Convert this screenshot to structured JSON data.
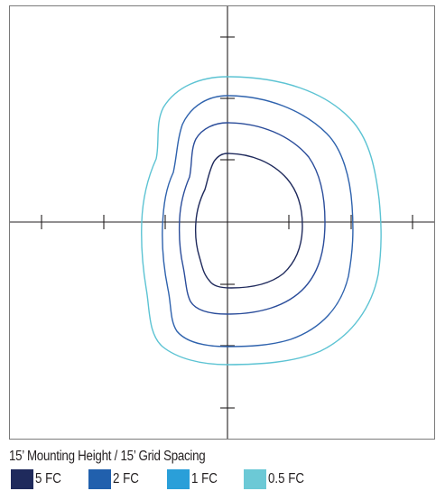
{
  "title": "15’ Mounting Height / 15’ Grid Spacing",
  "legend": [
    {
      "label": "5 FC",
      "color": "#1f2a5c"
    },
    {
      "label": "2 FC",
      "color": "#2160ad"
    },
    {
      "label": "1 FC",
      "color": "#2a9fd9"
    },
    {
      "label": "0.5 FC",
      "color": "#6cc9d6"
    }
  ],
  "colors": {
    "frame": "#7a7a7a",
    "axes": "#231f20",
    "contour_5fc": "#1f2a5c",
    "contour_2fc": "#2a4c9a",
    "contour_1fc": "#2e62ad",
    "contour_05fc": "#5cc3d3"
  },
  "icons": [
    "crosshair-axes",
    "isofootcandle-contour"
  ]
}
